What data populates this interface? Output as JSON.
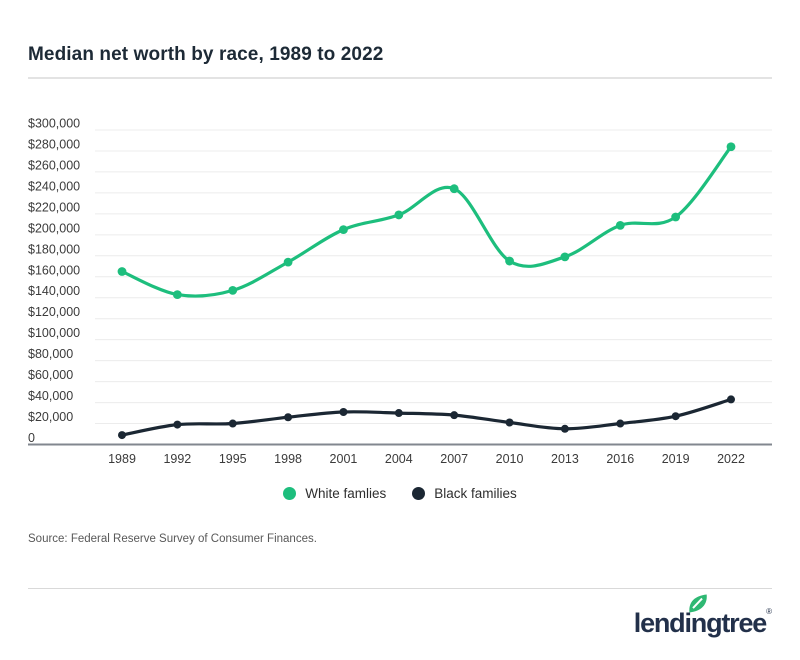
{
  "page": {
    "title": "Median net worth by race, 1989 to 2022"
  },
  "chart_data": {
    "type": "line",
    "title": "Median net worth by race, 1989 to 2022",
    "categories": [
      "1989",
      "1992",
      "1995",
      "1998",
      "2001",
      "2004",
      "2007",
      "2010",
      "2013",
      "2016",
      "2019",
      "2022"
    ],
    "series": [
      {
        "name": "White famlies",
        "color": "#1dbe7d",
        "values": [
          165000,
          143000,
          147000,
          174000,
          205000,
          219000,
          244000,
          175000,
          179000,
          209000,
          217000,
          284000
        ]
      },
      {
        "name": "Black families",
        "color": "#1b2733",
        "values": [
          9000,
          19000,
          20000,
          26000,
          31000,
          30000,
          28000,
          21000,
          15000,
          20000,
          27000,
          43000
        ]
      }
    ],
    "xlabel": "",
    "ylabel": "",
    "ylim": [
      0,
      300000
    ],
    "y_tick_step": 20000,
    "y_tick_labels": [
      "$300,000",
      "$280,000",
      "$260,000",
      "$240,000",
      "$220,000",
      "$200,000",
      "$180,000",
      "$160,000",
      "$140,000",
      "$120,000",
      "$100,000",
      "$80,000",
      "$60,000",
      "$40,000",
      "$20,000",
      "0"
    ],
    "grid": "horizontal",
    "legend_position": "bottom-center",
    "line_style": "smooth-with-point-markers"
  },
  "legend": {
    "items": [
      {
        "label": "White famlies",
        "color": "#1dbe7d"
      },
      {
        "label": "Black families",
        "color": "#1b2733"
      }
    ]
  },
  "source": {
    "text": "Source: Federal Reserve Survey of Consumer Finances."
  },
  "logo": {
    "text": "lendingtree",
    "registered_mark": "®",
    "text_color": "#22304a",
    "leaf_color": "#2eb873"
  },
  "colors": {
    "accent_green": "#1dbe7d",
    "dark_navy": "#1b2733",
    "gridline": "#ececec",
    "axis_line": "#82878f",
    "tick_text": "#3b3b3b"
  }
}
